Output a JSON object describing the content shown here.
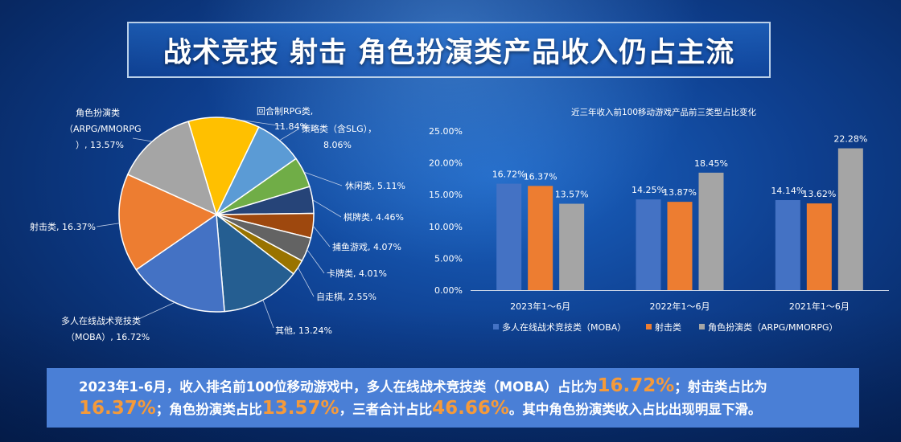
{
  "page": {
    "title": "战术竞技 射击 角色扮演类产品收入仍占主流"
  },
  "chart_data": [
    {
      "type": "pie",
      "slices": [
        {
          "name": "回合制RPG类",
          "value": 11.84,
          "label": "回合制RPG类,",
          "value_label": "11.84%",
          "color": "#ffc000"
        },
        {
          "name": "策略类（含SLG）",
          "value": 8.06,
          "label": "策略类（含SLG），",
          "value_label": "8.06%",
          "color": "#5b9bd5"
        },
        {
          "name": "休闲类",
          "value": 5.11,
          "label": "休闲类, 5.11%",
          "color": "#70ad47"
        },
        {
          "name": "棋牌类",
          "value": 4.46,
          "label": "棋牌类, 4.46%",
          "color": "#264478"
        },
        {
          "name": "捕鱼游戏",
          "value": 4.07,
          "label": "捕鱼游戏, 4.07%",
          "color": "#9e480e"
        },
        {
          "name": "卡牌类",
          "value": 4.01,
          "label": "卡牌类, 4.01%",
          "color": "#636363"
        },
        {
          "name": "自走棋",
          "value": 2.55,
          "label": "自走棋, 2.55%",
          "color": "#997300"
        },
        {
          "name": "其他",
          "value": 13.24,
          "label": "其他, 13.24%",
          "color": "#255e91"
        },
        {
          "name": "多人在线战术竞技类（MOBA）",
          "value": 16.72,
          "label": "多人在线战术竞技类",
          "value_label": "（MOBA）, 16.72%",
          "color": "#4472c4"
        },
        {
          "name": "射击类",
          "value": 16.37,
          "label": "射击类, 16.37%",
          "color": "#ed7d31"
        },
        {
          "name": "角色扮演类（ARPG/MMORPG）",
          "value": 13.57,
          "label": "角色扮演类",
          "label2": "（ARPG/MMORPG",
          "value_label": "）, 13.57%",
          "color": "#a5a5a5"
        }
      ]
    },
    {
      "type": "bar",
      "title": "近三年收入前100移动游戏产品前三类型占比变化",
      "categories": [
        "2023年1～6月",
        "2022年1～6月",
        "2021年1～6月"
      ],
      "ylim": [
        0,
        25
      ],
      "yticks": [
        "25.00%",
        "20.00%",
        "15.00%",
        "10.00%",
        "5.00%",
        "0.00%"
      ],
      "grid": false,
      "legend_position": "bottom",
      "series": [
        {
          "name": "多人在线战术竞技类（MOBA）",
          "color": "#4472c4",
          "values": [
            16.72,
            14.25,
            14.14
          ],
          "labels": [
            "16.72%",
            "14.25%",
            "14.14%"
          ]
        },
        {
          "name": "射击类",
          "color": "#ed7d31",
          "values": [
            16.37,
            13.87,
            13.62
          ],
          "labels": [
            "16.37%",
            "13.87%",
            "13.62%"
          ]
        },
        {
          "name": "角色扮演类（ARPG/MMORPG）",
          "color": "#a5a5a5",
          "values": [
            13.57,
            18.45,
            22.28
          ],
          "labels": [
            "13.57%",
            "18.45%",
            "22.28%"
          ]
        }
      ]
    }
  ],
  "summary": {
    "t1": "2023年1-6月，收入排名前100位移动游戏中，多人在线战术竞技类（MOBA）占比为",
    "h1": "16.72%",
    "t2": "；射击类占比为",
    "h2": "16.37%",
    "t3": "；角色扮演类占比",
    "h3": "13.57%",
    "t4": "，三者合计占比",
    "h4": "46.66%",
    "t5": "。其中角色扮演类收入占比出现明显下滑。"
  }
}
